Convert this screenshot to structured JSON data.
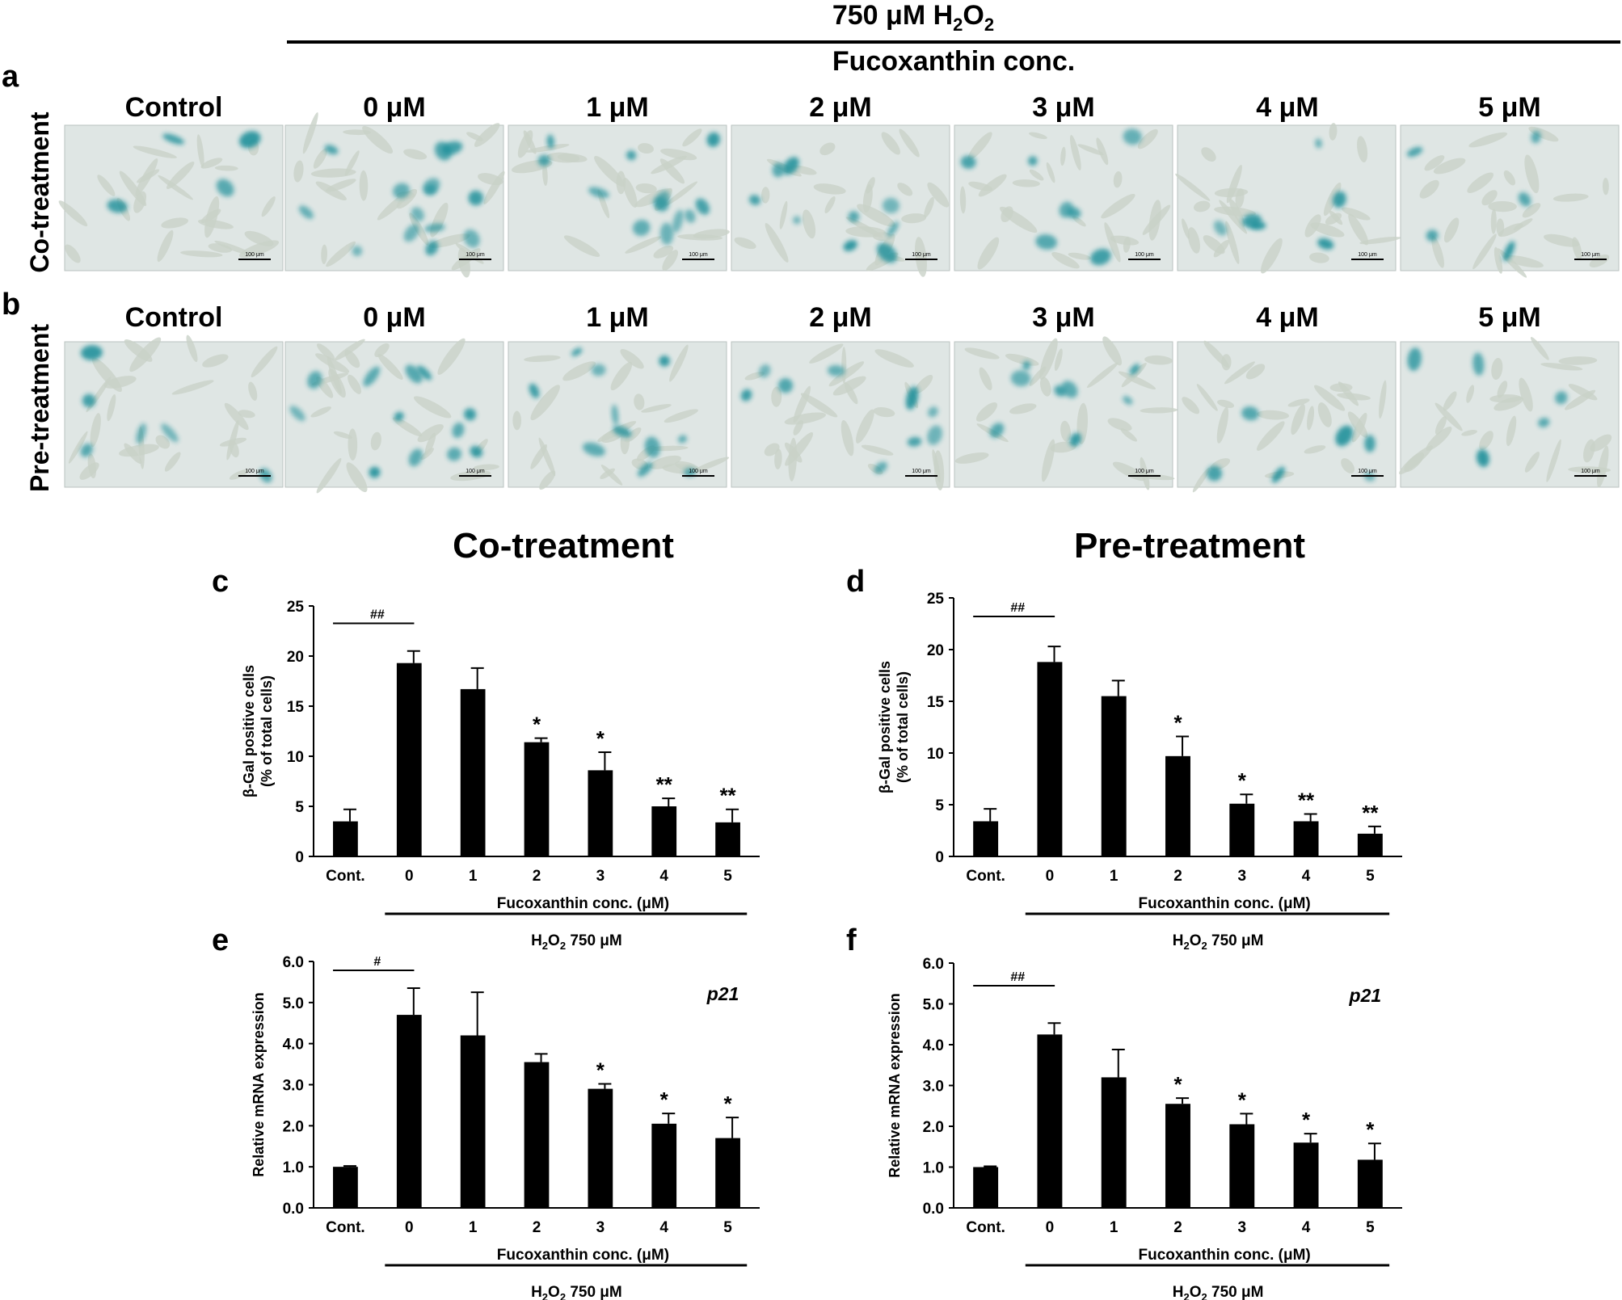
{
  "header": {
    "h2o2_title_pre": "750 μM H",
    "h2o2_title_sub": "2",
    "h2o2_title_mid": "O",
    "h2o2_title_sub2": "2",
    "fucoxanthin_title": "Fucoxanthin conc."
  },
  "micrographs": {
    "columns": [
      "Control",
      "0 μM",
      "1 μM",
      "2 μM",
      "3 μM",
      "4 μM",
      "5 μM"
    ],
    "scale_bar_label": "100 μm",
    "rows": [
      {
        "panel": "a",
        "label": "Co-treatment"
      },
      {
        "panel": "b",
        "label": "Pre-treatment"
      }
    ],
    "colors": {
      "background": "#dfe6e4",
      "stain": "#1f8f9a",
      "cell": "#c9d2c8"
    }
  },
  "section_titles": {
    "left": "Co-treatment",
    "right": "Pre-treatment"
  },
  "chart_data": [
    {
      "panel": "c",
      "type": "bar",
      "categories": [
        "Cont.",
        "0",
        "1",
        "2",
        "3",
        "4",
        "5"
      ],
      "values": [
        3.5,
        19.3,
        16.7,
        11.4,
        8.6,
        5.0,
        3.4
      ],
      "errors": [
        1.2,
        1.2,
        2.1,
        0.4,
        1.8,
        0.8,
        1.3
      ],
      "significance": [
        "",
        "",
        "",
        "*",
        "*",
        "**",
        "**"
      ],
      "bracket_label": "##",
      "ylabel_line1": "β-Gal positive cells",
      "ylabel_line2": "(% of total cells)",
      "xlabel": "Fucoxanthin conc. (μM)",
      "h2o2_label": "750 μM",
      "ylim": [
        0,
        25
      ],
      "yticks": [
        "0",
        "5",
        "10",
        "15",
        "20",
        "25"
      ],
      "annotation": "",
      "bar_color": "#000000"
    },
    {
      "panel": "d",
      "type": "bar",
      "categories": [
        "Cont.",
        "0",
        "1",
        "2",
        "3",
        "4",
        "5"
      ],
      "values": [
        3.4,
        18.8,
        15.5,
        9.7,
        5.1,
        3.4,
        2.2
      ],
      "errors": [
        1.2,
        1.5,
        1.5,
        1.9,
        0.9,
        0.7,
        0.7
      ],
      "significance": [
        "",
        "",
        "",
        "*",
        "*",
        "**",
        "**"
      ],
      "bracket_label": "##",
      "ylabel_line1": "β-Gal positive cells",
      "ylabel_line2": "(% of total cells)",
      "xlabel": "Fucoxanthin conc. (μM)",
      "h2o2_label": "750 μM",
      "ylim": [
        0,
        25
      ],
      "yticks": [
        "0",
        "5",
        "10",
        "15",
        "20",
        "25"
      ],
      "annotation": "",
      "bar_color": "#000000"
    },
    {
      "panel": "e",
      "type": "bar",
      "categories": [
        "Cont.",
        "0",
        "1",
        "2",
        "3",
        "4",
        "5"
      ],
      "values": [
        1.0,
        4.7,
        4.2,
        3.55,
        2.9,
        2.05,
        1.7
      ],
      "errors": [
        0.02,
        0.65,
        1.05,
        0.2,
        0.12,
        0.25,
        0.5
      ],
      "significance": [
        "",
        "",
        "",
        "",
        "*",
        "*",
        "*"
      ],
      "bracket_label": "#",
      "ylabel_line1": "Relative mRNA expression",
      "ylabel_line2": "",
      "xlabel": "Fucoxanthin conc. (μM)",
      "h2o2_label": "750 μM",
      "ylim": [
        0,
        6
      ],
      "yticks": [
        "0.0",
        "1.0",
        "2.0",
        "3.0",
        "4.0",
        "5.0",
        "6.0"
      ],
      "annotation": "p21",
      "bar_color": "#000000"
    },
    {
      "panel": "f",
      "type": "bar",
      "categories": [
        "Cont.",
        "0",
        "1",
        "2",
        "3",
        "4",
        "5"
      ],
      "values": [
        1.0,
        4.25,
        3.2,
        2.55,
        2.05,
        1.6,
        1.18
      ],
      "errors": [
        0.02,
        0.28,
        0.68,
        0.14,
        0.26,
        0.22,
        0.4
      ],
      "significance": [
        "",
        "",
        "",
        "*",
        "*",
        "*",
        "*"
      ],
      "bracket_label": "##",
      "ylabel_line1": "Relative mRNA expression",
      "ylabel_line2": "",
      "xlabel": "Fucoxanthin conc. (μM)",
      "h2o2_label": "750 μM",
      "ylim": [
        0,
        6
      ],
      "yticks": [
        "0.0",
        "1.0",
        "2.0",
        "3.0",
        "4.0",
        "5.0",
        "6.0"
      ],
      "annotation": "p21",
      "bar_color": "#000000"
    }
  ]
}
